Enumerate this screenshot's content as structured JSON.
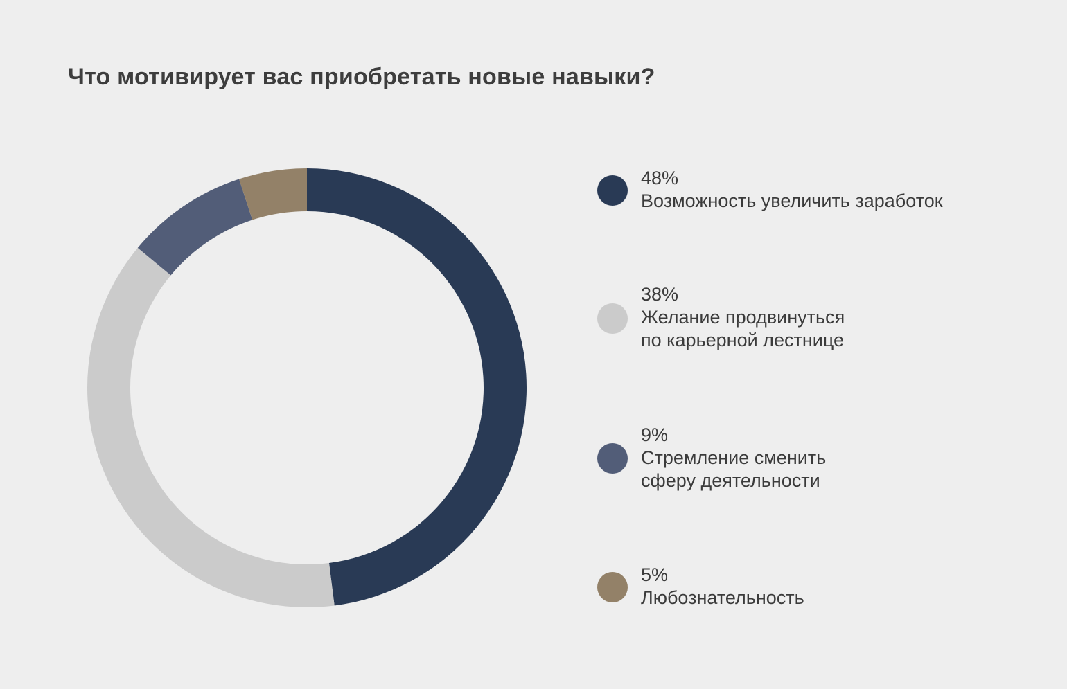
{
  "chart_data": {
    "type": "pie",
    "title": "Что мотивирует вас приобретать новые навыки?",
    "variant": "donut",
    "slices": [
      {
        "value": 48,
        "label_value": "48%",
        "label_lines": [
          "Возможность увеличить заработок"
        ],
        "color": "#293a55"
      },
      {
        "value": 38,
        "label_value": "38%",
        "label_lines": [
          "Желание продвинуться",
          "по карьерной лестнице"
        ],
        "color": "#cbcbcb"
      },
      {
        "value": 9,
        "label_value": "9%",
        "label_lines": [
          "Стремление сменить",
          "сферу деятельности"
        ],
        "color": "#525d78"
      },
      {
        "value": 5,
        "label_value": "5%",
        "label_lines": [
          "Любознательность"
        ],
        "color": "#938168"
      }
    ],
    "start": "top",
    "direction": "clockwise",
    "legend_position": "right"
  },
  "background_color": "#eeeeee"
}
